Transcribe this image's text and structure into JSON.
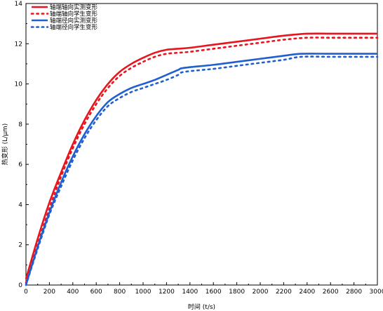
{
  "chart_data": {
    "type": "line",
    "title": "",
    "xlabel": "时间 (t/s)",
    "ylabel": "热变形 (L/μm)",
    "xlim": [
      0,
      3000
    ],
    "ylim": [
      0,
      14
    ],
    "xticks": [
      0,
      200,
      400,
      600,
      800,
      1000,
      1200,
      1400,
      1600,
      1800,
      2000,
      2200,
      2400,
      2600,
      2800,
      3000
    ],
    "yticks": [
      0,
      2,
      4,
      6,
      8,
      10,
      12,
      14
    ],
    "grid": false,
    "legend_position": "top-left",
    "series": [
      {
        "name": "轴端轴向实测变形",
        "color": "#e8141e",
        "style": "solid",
        "x": [
          0,
          100,
          200,
          300,
          400,
          500,
          600,
          700,
          800,
          900,
          1000,
          1100,
          1200,
          1300,
          1400,
          1600,
          1800,
          2000,
          2200,
          2400,
          2600,
          2800,
          3000
        ],
        "y": [
          0.3,
          2.3,
          4.1,
          5.6,
          7.0,
          8.2,
          9.2,
          10.0,
          10.6,
          11.0,
          11.3,
          11.55,
          11.7,
          11.75,
          11.8,
          11.95,
          12.1,
          12.25,
          12.4,
          12.5,
          12.5,
          12.5,
          12.5
        ]
      },
      {
        "name": "轴端轴向学生变形",
        "color": "#e8141e",
        "style": "dotted",
        "x": [
          0,
          100,
          200,
          300,
          400,
          500,
          600,
          700,
          800,
          900,
          1000,
          1100,
          1200,
          1300,
          1400,
          1600,
          1800,
          2000,
          2200,
          2400,
          2600,
          2800,
          3000
        ],
        "y": [
          0.1,
          2.0,
          3.8,
          5.4,
          6.8,
          8.0,
          9.0,
          9.8,
          10.4,
          10.8,
          11.1,
          11.35,
          11.5,
          11.55,
          11.6,
          11.75,
          11.9,
          12.05,
          12.2,
          12.3,
          12.3,
          12.3,
          12.3
        ]
      },
      {
        "name": "轴端径向实测变形",
        "color": "#1f5fd0",
        "style": "solid",
        "x": [
          0,
          100,
          200,
          300,
          400,
          500,
          600,
          700,
          800,
          900,
          1000,
          1100,
          1200,
          1300,
          1350,
          1600,
          1800,
          2000,
          2200,
          2350,
          2600,
          2800,
          3000
        ],
        "y": [
          0.0,
          1.9,
          3.6,
          5.1,
          6.4,
          7.5,
          8.4,
          9.1,
          9.5,
          9.8,
          10.0,
          10.2,
          10.45,
          10.7,
          10.8,
          10.95,
          11.1,
          11.25,
          11.4,
          11.5,
          11.5,
          11.5,
          11.5
        ]
      },
      {
        "name": "轴端径向学生变形",
        "color": "#1f5fd0",
        "style": "dotted",
        "x": [
          0,
          100,
          200,
          300,
          400,
          500,
          600,
          700,
          800,
          900,
          1000,
          1100,
          1200,
          1300,
          1350,
          1600,
          1800,
          2000,
          2200,
          2350,
          2600,
          2800,
          3000
        ],
        "y": [
          0.0,
          1.8,
          3.5,
          4.9,
          6.2,
          7.3,
          8.2,
          8.9,
          9.3,
          9.6,
          9.8,
          10.0,
          10.2,
          10.45,
          10.6,
          10.75,
          10.9,
          11.05,
          11.2,
          11.35,
          11.35,
          11.35,
          11.35
        ]
      }
    ]
  }
}
